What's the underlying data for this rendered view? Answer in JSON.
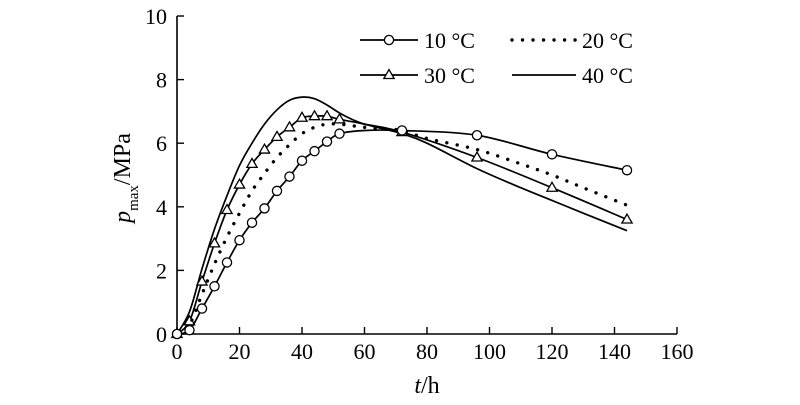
{
  "chart_data": {
    "type": "line",
    "xlabel": {
      "italic": "t",
      "rest": "/h"
    },
    "ylabel": {
      "italic": "p",
      "sub": "max",
      "rest": "/MPa"
    },
    "xlim": [
      0,
      160
    ],
    "ylim": [
      0,
      10
    ],
    "xticks": [
      0,
      20,
      40,
      60,
      80,
      100,
      120,
      140,
      160
    ],
    "yticks": [
      0,
      2,
      4,
      6,
      8,
      10
    ],
    "grid": false,
    "legend_position": "top-right",
    "series": [
      {
        "name": "10 °C",
        "style": "solid-circle",
        "color": "#000000",
        "x": [
          0,
          4,
          8,
          12,
          16,
          20,
          24,
          28,
          32,
          36,
          40,
          44,
          48,
          52,
          60,
          72,
          96,
          120,
          144
        ],
        "y": [
          0,
          0.12,
          0.8,
          1.5,
          2.25,
          2.95,
          3.5,
          3.95,
          4.5,
          4.95,
          5.45,
          5.75,
          6.05,
          6.3,
          6.4,
          6.4,
          6.25,
          5.65,
          5.15
        ],
        "markers_x": [
          0,
          4,
          8,
          12,
          16,
          20,
          24,
          28,
          32,
          36,
          40,
          44,
          48,
          52,
          72,
          96,
          120,
          144
        ],
        "markers_y": [
          0,
          0.12,
          0.8,
          1.5,
          2.25,
          2.95,
          3.5,
          3.95,
          4.5,
          4.95,
          5.45,
          5.75,
          6.05,
          6.3,
          6.4,
          6.25,
          5.65,
          5.15
        ]
      },
      {
        "name": "20 °C",
        "style": "dotted",
        "color": "#000000",
        "x": [
          0,
          4,
          8,
          12,
          16,
          20,
          24,
          28,
          32,
          36,
          40,
          44,
          48,
          52,
          56,
          60,
          66,
          72,
          80,
          96,
          110,
          120,
          130,
          144
        ],
        "y": [
          0,
          0.3,
          1.25,
          2.2,
          3.05,
          3.8,
          4.5,
          5.05,
          5.55,
          5.95,
          6.3,
          6.5,
          6.6,
          6.6,
          6.55,
          6.5,
          6.45,
          6.4,
          6.15,
          5.8,
          5.35,
          5.0,
          4.6,
          4.05
        ]
      },
      {
        "name": "30 °C",
        "style": "solid-triangle",
        "color": "#000000",
        "x": [
          0,
          4,
          8,
          12,
          16,
          20,
          24,
          28,
          32,
          36,
          40,
          44,
          48,
          52,
          60,
          72,
          96,
          120,
          144
        ],
        "y": [
          0,
          0.4,
          1.65,
          2.85,
          3.9,
          4.7,
          5.35,
          5.8,
          6.2,
          6.5,
          6.8,
          6.85,
          6.85,
          6.75,
          6.6,
          6.35,
          5.55,
          4.6,
          3.6
        ],
        "markers_x": [
          0,
          4,
          8,
          12,
          16,
          20,
          24,
          28,
          32,
          36,
          40,
          44,
          48,
          52,
          72,
          96,
          120,
          144
        ],
        "markers_y": [
          0,
          0.4,
          1.65,
          2.85,
          3.9,
          4.7,
          5.35,
          5.8,
          6.2,
          6.5,
          6.8,
          6.85,
          6.85,
          6.75,
          6.35,
          5.55,
          4.6,
          3.6
        ]
      },
      {
        "name": "40 °C",
        "style": "solid",
        "color": "#000000",
        "x": [
          0,
          4,
          8,
          12,
          16,
          20,
          24,
          28,
          32,
          36,
          40,
          44,
          48,
          52,
          56,
          60,
          66,
          72,
          80,
          96,
          110,
          120,
          130,
          144
        ],
        "y": [
          0,
          0.7,
          2.05,
          3.3,
          4.35,
          5.3,
          6.0,
          6.6,
          7.05,
          7.35,
          7.45,
          7.4,
          7.2,
          6.95,
          6.75,
          6.6,
          6.45,
          6.3,
          6.0,
          5.2,
          4.6,
          4.2,
          3.8,
          3.25
        ]
      }
    ]
  }
}
